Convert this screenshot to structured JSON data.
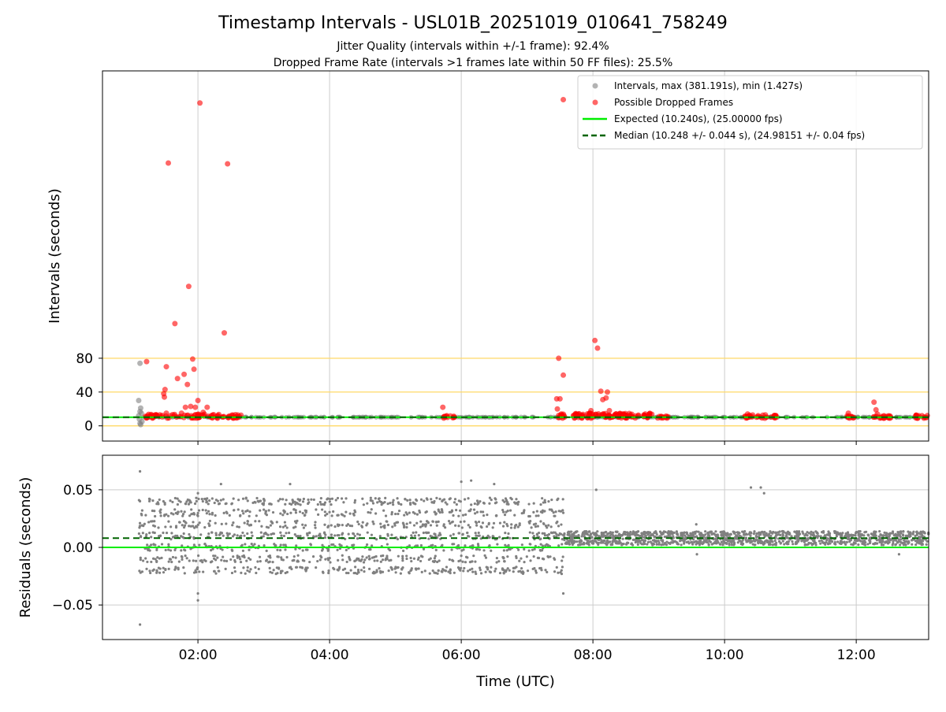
{
  "chart_data": {
    "type": "scatter",
    "title": "Timestamp Intervals - USL01B_20251019_010641_758249",
    "subtitle_lines": [
      "Jitter Quality (intervals within +/-1 frame): 92.4%",
      "Dropped Frame Rate (intervals >1 frames late within 50 FF files): 25.5%"
    ],
    "xlabel": "Time (UTC)",
    "x_ticks": [
      "02:00",
      "04:00",
      "06:00",
      "08:00",
      "10:00",
      "12:00"
    ],
    "x_tick_hours": [
      2,
      4,
      6,
      8,
      10,
      12
    ],
    "x_range_hours": [
      0.55,
      13.1
    ],
    "grid": true,
    "legend_position": "top-right",
    "colors": {
      "intervals": "#808080",
      "dropped": "#ff0000",
      "expected": "#00ee00",
      "median": "#006400",
      "threshold": "#ffd966",
      "grid": "#cccccc"
    },
    "top_panel": {
      "ylabel": "Intervals (seconds)",
      "y_ticks": [
        0,
        40,
        80
      ],
      "ylim": [
        -18,
        420
      ],
      "threshold_lines": [
        0,
        40,
        80
      ],
      "expected": 10.24,
      "median": 10.248,
      "legend": [
        "Intervals, max (381.191s), min (1.427s)",
        "Possible Dropped Frames",
        "Expected (10.240s), (25.00000 fps)",
        "Median (10.248 +/- 0.044 s), (24.98151 +/- 0.04 fps)"
      ],
      "intervals_points": [
        [
          1.12,
          74
        ],
        [
          1.1,
          30
        ],
        [
          1.13,
          21
        ],
        [
          1.12,
          17
        ],
        [
          1.14,
          15
        ],
        [
          1.11,
          8
        ],
        [
          1.12,
          3
        ],
        [
          1.13,
          1.4
        ],
        [
          1.15,
          5
        ],
        [
          1.1,
          12
        ]
      ],
      "dropped_points": [
        [
          1.22,
          76
        ],
        [
          1.28,
          12
        ],
        [
          1.35,
          13
        ],
        [
          1.42,
          13
        ],
        [
          1.48,
          38
        ],
        [
          1.49,
          34
        ],
        [
          1.5,
          43
        ],
        [
          1.52,
          15
        ],
        [
          1.52,
          70
        ],
        [
          1.55,
          311
        ],
        [
          1.65,
          121
        ],
        [
          1.69,
          56
        ],
        [
          1.75,
          15
        ],
        [
          1.79,
          61
        ],
        [
          1.81,
          22
        ],
        [
          1.84,
          49
        ],
        [
          1.86,
          165
        ],
        [
          1.89,
          23
        ],
        [
          1.92,
          79
        ],
        [
          1.94,
          67
        ],
        [
          1.96,
          22
        ],
        [
          2.0,
          30
        ],
        [
          2.03,
          382
        ],
        [
          2.08,
          16
        ],
        [
          2.14,
          22
        ],
        [
          2.3,
          12
        ],
        [
          2.4,
          110
        ],
        [
          2.45,
          310
        ],
        [
          2.6,
          11
        ],
        [
          5.72,
          22
        ],
        [
          5.78,
          12
        ],
        [
          7.45,
          32
        ],
        [
          7.46,
          20
        ],
        [
          7.48,
          80
        ],
        [
          7.5,
          32
        ],
        [
          7.52,
          14
        ],
        [
          7.55,
          60
        ],
        [
          7.55,
          386
        ],
        [
          7.97,
          18
        ],
        [
          8.03,
          101
        ],
        [
          8.07,
          92
        ],
        [
          8.12,
          41
        ],
        [
          8.15,
          31
        ],
        [
          8.2,
          33
        ],
        [
          8.22,
          40
        ],
        [
          8.25,
          18
        ],
        [
          8.35,
          14
        ],
        [
          8.45,
          14
        ],
        [
          10.35,
          14
        ],
        [
          10.62,
          13
        ],
        [
          11.88,
          15
        ],
        [
          12.27,
          28
        ],
        [
          12.3,
          19
        ],
        [
          12.32,
          14
        ],
        [
          12.95,
          12
        ],
        [
          13.0,
          12
        ]
      ],
      "dropped_clusters": [
        {
          "start": 1.2,
          "end": 2.7,
          "min": 9,
          "max": 14,
          "count": 90
        },
        {
          "start": 5.7,
          "end": 5.9,
          "min": 9,
          "max": 12,
          "count": 12
        },
        {
          "start": 7.45,
          "end": 7.58,
          "min": 9,
          "max": 14,
          "count": 10
        },
        {
          "start": 7.7,
          "end": 8.9,
          "min": 9,
          "max": 15,
          "count": 110
        },
        {
          "start": 8.95,
          "end": 9.15,
          "min": 9,
          "max": 12,
          "count": 12
        },
        {
          "start": 10.3,
          "end": 10.8,
          "min": 9,
          "max": 13,
          "count": 30
        },
        {
          "start": 11.85,
          "end": 12.0,
          "min": 9,
          "max": 12,
          "count": 10
        },
        {
          "start": 12.2,
          "end": 12.55,
          "min": 9,
          "max": 12,
          "count": 22
        },
        {
          "start": 12.9,
          "end": 13.1,
          "min": 9,
          "max": 13,
          "count": 14
        }
      ],
      "interval_band": {
        "start": 1.1,
        "end": 13.1,
        "min": 10.1,
        "max": 10.4,
        "count": 320
      }
    },
    "bottom_panel": {
      "ylabel": "Residuals (seconds)",
      "y_ticks": [
        0.05,
        0.0,
        -0.05
      ],
      "y_tick_labels": [
        "0.05",
        "0.00",
        "−0.05"
      ],
      "ylim": [
        -0.08,
        0.08
      ],
      "expected": 0.0,
      "median": 0.008,
      "bands": [
        {
          "start": 1.1,
          "end": 7.55,
          "levels": [
            -0.02,
            -0.01,
            0.0,
            0.01,
            0.02,
            0.03,
            0.04
          ],
          "spread": 0.003,
          "count": 1500
        },
        {
          "start": 7.55,
          "end": 13.1,
          "levels": [
            0.008
          ],
          "spread": 0.006,
          "count": 1300
        }
      ],
      "outliers": [
        [
          1.12,
          0.066
        ],
        [
          1.12,
          -0.067
        ],
        [
          2.0,
          -0.04
        ],
        [
          2.0,
          -0.046
        ],
        [
          2.0,
          0.047
        ],
        [
          7.55,
          -0.04
        ],
        [
          7.55,
          0.03
        ],
        [
          8.05,
          0.05
        ],
        [
          9.57,
          0.02
        ],
        [
          9.58,
          -0.006
        ],
        [
          10.4,
          0.052
        ],
        [
          10.55,
          0.052
        ],
        [
          10.6,
          0.047
        ],
        [
          12.65,
          -0.006
        ],
        [
          6.15,
          0.058
        ],
        [
          6.0,
          0.057
        ],
        [
          6.5,
          0.055
        ],
        [
          3.4,
          0.055
        ],
        [
          2.35,
          0.055
        ]
      ]
    }
  }
}
